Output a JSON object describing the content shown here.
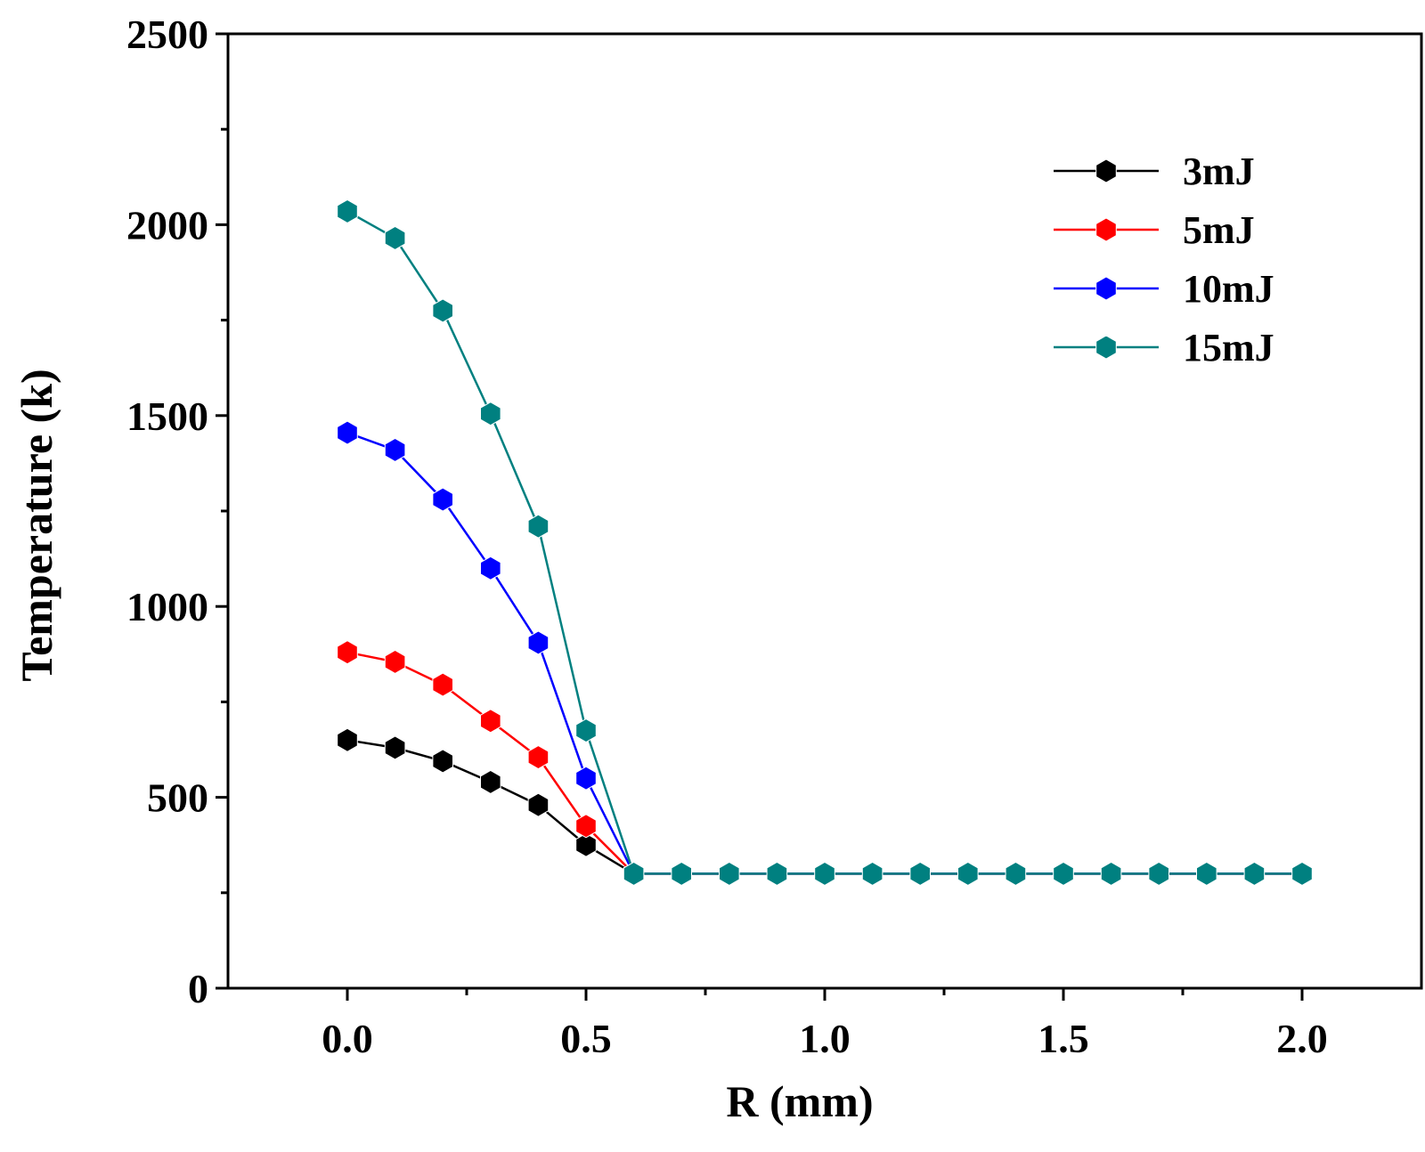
{
  "chart_data": {
    "type": "line",
    "xlabel": "R (mm)",
    "ylabel": "Temperature (k)",
    "xlim": [
      -0.25,
      2.25
    ],
    "ylim": [
      0,
      2500
    ],
    "xticks": [
      0.0,
      0.5,
      1.0,
      1.5,
      2.0
    ],
    "xtick_labels": [
      "0.0",
      "0.5",
      "1.0",
      "1.5",
      "2.0"
    ],
    "xminor": [
      0.25,
      0.75,
      1.25,
      1.75
    ],
    "yticks": [
      0,
      500,
      1000,
      1500,
      2000,
      2500
    ],
    "ytick_labels": [
      "0",
      "500",
      "1000",
      "1500",
      "2000",
      "2500"
    ],
    "yminor": [
      250,
      750,
      1250,
      1750,
      2250
    ],
    "grid": false,
    "legend_position": "top-right",
    "x": [
      0.0,
      0.1,
      0.2,
      0.3,
      0.4,
      0.5,
      0.6,
      0.7,
      0.8,
      0.9,
      1.0,
      1.1,
      1.2,
      1.3,
      1.4,
      1.5,
      1.6,
      1.7,
      1.8,
      1.9,
      2.0
    ],
    "series": [
      {
        "name": "3mJ",
        "color": "#000000",
        "values": [
          650,
          630,
          595,
          540,
          480,
          375,
          300,
          300,
          300,
          300,
          300,
          300,
          300,
          300,
          300,
          300,
          300,
          300,
          300,
          300,
          300
        ]
      },
      {
        "name": "5mJ",
        "color": "#ff0000",
        "values": [
          880,
          855,
          795,
          700,
          605,
          425,
          300,
          300,
          300,
          300,
          300,
          300,
          300,
          300,
          300,
          300,
          300,
          300,
          300,
          300,
          300
        ]
      },
      {
        "name": "10mJ",
        "color": "#0000ff",
        "values": [
          1455,
          1410,
          1280,
          1100,
          905,
          550,
          300,
          300,
          300,
          300,
          300,
          300,
          300,
          300,
          300,
          300,
          300,
          300,
          300,
          300,
          300
        ]
      },
      {
        "name": "15mJ",
        "color": "#008080",
        "values": [
          2035,
          1965,
          1775,
          1505,
          1210,
          675,
          300,
          300,
          300,
          300,
          300,
          300,
          300,
          300,
          300,
          300,
          300,
          300,
          300,
          300,
          300
        ]
      }
    ]
  }
}
